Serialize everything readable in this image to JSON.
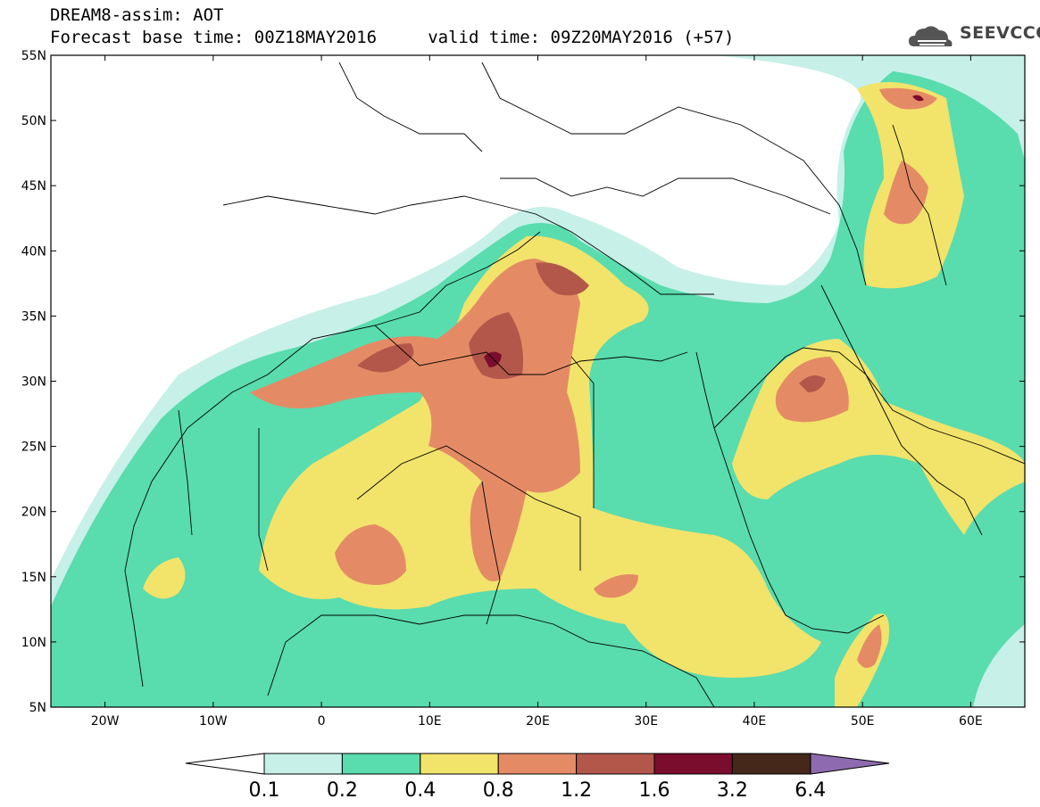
{
  "header": {
    "line1": "DREAM8-assim: AOT",
    "line2": "Forecast base time: 00Z18MAY2016     valid time: 09Z20MAY2016 (+57)"
  },
  "logo": {
    "text": "SEEVCCC",
    "icon": "cloud-icon"
  },
  "map": {
    "lon_range": [
      -25,
      65
    ],
    "lat_range": [
      5,
      55
    ],
    "lat_labels": [
      "55N",
      "50N",
      "45N",
      "40N",
      "35N",
      "30N",
      "25N",
      "20N",
      "15N",
      "10N",
      "5N"
    ],
    "lon_labels": [
      "20W",
      "10W",
      "0",
      "10E",
      "20E",
      "30E",
      "40E",
      "50E",
      "60E"
    ],
    "colors": {
      "c01": "#c6f0e8",
      "c02": "#59dcae",
      "c04": "#f2e36b",
      "c08": "#e48b66",
      "c12": "#b3574a",
      "c16": "#7a0d2e",
      "c32": "#45281a",
      "c64": "#8e6bb0"
    }
  },
  "colorbar": {
    "labels": [
      "0.1",
      "0.2",
      "0.4",
      "0.8",
      "1.2",
      "1.6",
      "3.2",
      "6.4"
    ],
    "colors": [
      "#c6f0e8",
      "#59dcae",
      "#f2e36b",
      "#e48b66",
      "#b3574a",
      "#7a0d2e",
      "#45281a"
    ],
    "over_color": "#8e6bb0",
    "under_color": "#ffffff"
  }
}
